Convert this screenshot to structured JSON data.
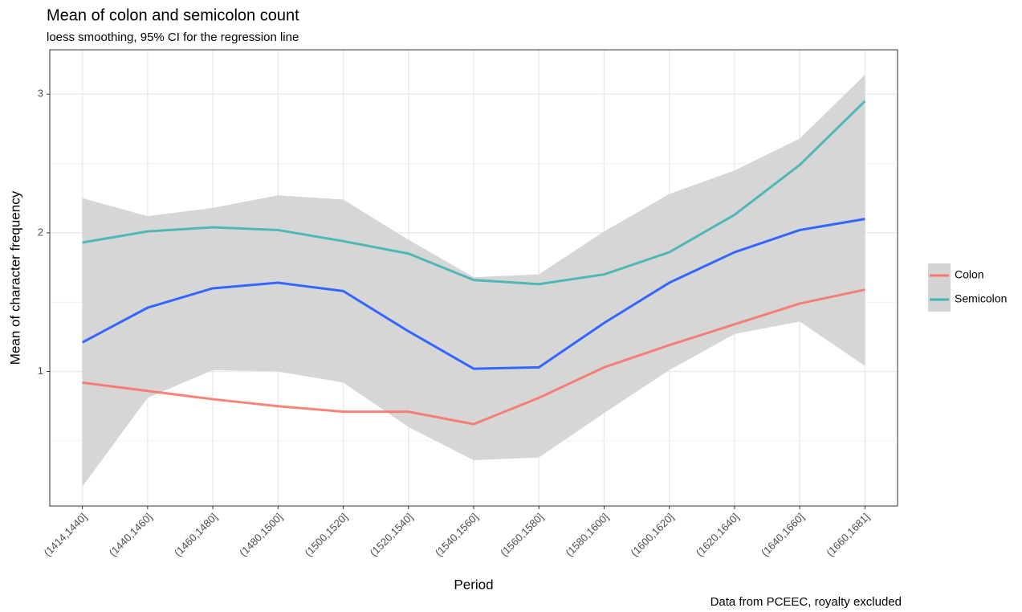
{
  "chart_data": {
    "type": "line",
    "title": "Mean of colon and semicolon count",
    "subtitle": "loess smoothing, 95% CI for the regression line",
    "x_label": "Period",
    "y_label": "Mean of character frequency",
    "caption": "Data from PCEEC, royalty excluded",
    "categories": [
      "(1414,1440]",
      "(1440,1460]",
      "(1460,1480]",
      "(1480,1500]",
      "(1500,1520]",
      "(1520,1540]",
      "(1540,1560]",
      "(1560,1580]",
      "(1580,1600]",
      "(1600,1620]",
      "(1620,1640]",
      "(1640,1660]",
      "(1660,1681]"
    ],
    "series": [
      {
        "name": "Colon",
        "color": "#F8766D",
        "values": [
          0.92,
          0.86,
          0.8,
          0.75,
          0.71,
          0.71,
          0.62,
          0.81,
          1.03,
          1.19,
          1.34,
          1.49,
          1.59
        ]
      },
      {
        "name": "Semicolon",
        "color": "#3fb5b4",
        "values": [
          1.93,
          2.01,
          2.04,
          2.02,
          1.94,
          1.85,
          1.66,
          1.63,
          1.7,
          1.86,
          2.13,
          2.49,
          2.95
        ]
      }
    ],
    "smooth": {
      "color": "#3366FF",
      "ribbon_color": "#d4d4d4",
      "values": [
        1.21,
        1.46,
        1.6,
        1.64,
        1.58,
        1.29,
        1.02,
        1.03,
        1.35,
        1.64,
        1.86,
        2.02,
        2.1
      ],
      "upper": [
        2.25,
        2.12,
        2.18,
        2.27,
        2.24,
        1.95,
        1.68,
        1.7,
        2.01,
        2.28,
        2.45,
        2.68,
        3.14
      ],
      "lower": [
        0.17,
        0.81,
        1.01,
        1.0,
        0.92,
        0.6,
        0.36,
        0.38,
        0.7,
        1.01,
        1.27,
        1.36,
        1.04
      ]
    },
    "ylim": [
      0.03,
      3.32
    ],
    "yticks": [
      1,
      2,
      3
    ],
    "minor_yticks": [
      0.5,
      1.5,
      2.5
    ],
    "grid": true,
    "legend": "right"
  }
}
